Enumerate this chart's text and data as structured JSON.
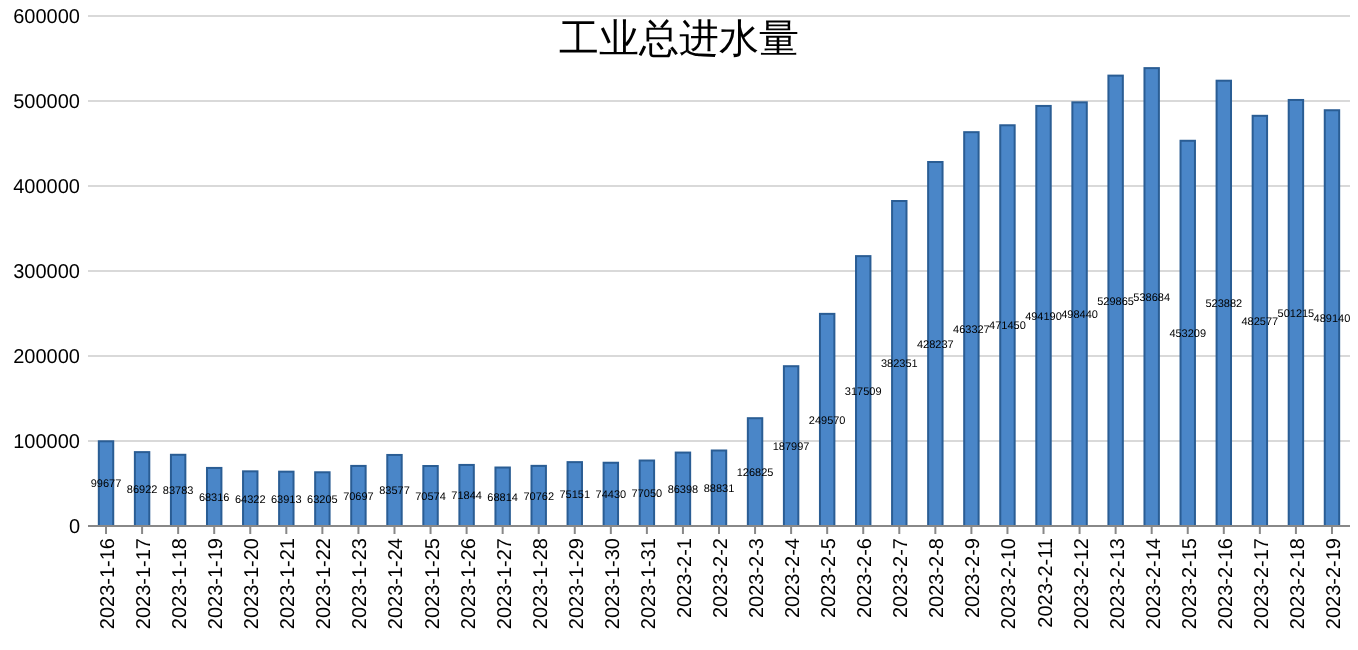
{
  "chart_data": {
    "type": "bar",
    "title": "工业总进水量",
    "categories": [
      "2023-1-16",
      "2023-1-17",
      "2023-1-18",
      "2023-1-19",
      "2023-1-20",
      "2023-1-21",
      "2023-1-22",
      "2023-1-23",
      "2023-1-24",
      "2023-1-25",
      "2023-1-26",
      "2023-1-27",
      "2023-1-28",
      "2023-1-29",
      "2023-1-30",
      "2023-1-31",
      "2023-2-1",
      "2023-2-2",
      "2023-2-3",
      "2023-2-4",
      "2023-2-5",
      "2023-2-6",
      "2023-2-7",
      "2023-2-8",
      "2023-2-9",
      "2023-2-10",
      "2023-2-11",
      "2023-2-12",
      "2023-2-13",
      "2023-2-14",
      "2023-2-15",
      "2023-2-16",
      "2023-2-17",
      "2023-2-18",
      "2023-2-19"
    ],
    "values": [
      99677,
      86922,
      83783,
      68316,
      64322,
      63913,
      63205,
      70697,
      83577,
      70574,
      71844,
      68814,
      70762,
      75151,
      74430,
      77050,
      86398,
      88831,
      126825,
      187997,
      249570,
      317509,
      382351,
      428237,
      463327,
      471450,
      494190,
      498440,
      529865,
      538684,
      453209,
      523882,
      482577,
      501215,
      489140
    ],
    "color": "#4a86c8",
    "ylim": [
      0,
      600000
    ],
    "yticks": [
      0,
      100000,
      200000,
      300000,
      400000,
      500000,
      600000
    ],
    "grid": "y",
    "data_labels": true
  }
}
